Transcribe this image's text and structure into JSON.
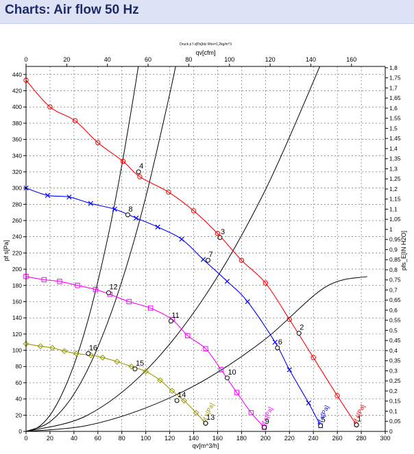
{
  "header": {
    "title": "Charts: Air flow 50 Hz"
  },
  "chart_data": {
    "type": "line",
    "title": "Druck p f s[Pa]/dz Rho=1,2kg/m^3",
    "xlabel": "qv[m^3/h]",
    "xlabel_top": "qv[cfm]",
    "ylabel": "pf s[Pa]",
    "ylabel_right": "pfs_E[IN H2O]",
    "xlim": [
      0,
      300
    ],
    "ylim": [
      0,
      450
    ],
    "x_ticks": [
      0,
      20,
      40,
      60,
      80,
      100,
      120,
      140,
      160,
      180,
      200,
      220,
      240,
      260,
      280,
      300
    ],
    "y_ticks": [
      0,
      20,
      40,
      60,
      80,
      100,
      120,
      140,
      160,
      180,
      200,
      220,
      240,
      260,
      280,
      300,
      320,
      340,
      360,
      380,
      400,
      420,
      440
    ],
    "top_ticks": [
      0,
      20,
      40,
      60,
      80,
      100,
      120,
      140,
      160
    ],
    "right_ticks": [
      "0",
      "0,05",
      "0,1",
      "0,15",
      "0,2",
      "0,25",
      "0,3",
      "0,35",
      "0,4",
      "0,45",
      "0,5",
      "0,55",
      "0,6",
      "0,65",
      "0,7",
      "0,75",
      "0,8",
      "0,85",
      "0,9",
      "0,95",
      "1",
      "1,05",
      "1,1",
      "1,15",
      "1,2",
      "1,25",
      "1,3",
      "1,35",
      "1,4",
      "1,45",
      "1,5",
      "1,55",
      "1,6",
      "1,65",
      "1,7",
      "1,75",
      "1,8"
    ],
    "grid": true,
    "series": [
      {
        "name": "pf s[Pa]",
        "color": "#ff0000",
        "marker": "circle",
        "x": [
          0,
          20,
          41,
          60,
          81,
          95,
          119,
          140,
          160,
          180,
          200,
          220,
          240,
          260,
          276
        ],
        "y": [
          433,
          400,
          383,
          356,
          333,
          314,
          295,
          272,
          244,
          211,
          183,
          138,
          91,
          44,
          8
        ]
      },
      {
        "name": "pf s[Pa]",
        "color": "#0000ff",
        "marker": "x",
        "x": [
          0,
          18,
          36,
          54,
          74,
          92,
          110,
          130,
          148,
          168,
          185,
          208,
          220,
          236,
          246
        ],
        "y": [
          300,
          291,
          289,
          281,
          274,
          263,
          252,
          237,
          212,
          185,
          160,
          110,
          76,
          35,
          7
        ]
      },
      {
        "name": "pf s[Pa]",
        "color": "#ff00ff",
        "marker": "square",
        "x": [
          0,
          15,
          28,
          43,
          58,
          70,
          86,
          104,
          122,
          135,
          150,
          163,
          176,
          188,
          199
        ],
        "y": [
          191,
          187,
          185,
          180,
          175,
          169,
          160,
          152,
          138,
          118,
          102,
          76,
          48,
          23,
          5
        ]
      },
      {
        "name": "pf s[Pa]",
        "color": "#999900",
        "marker": "diamond",
        "x": [
          0,
          12,
          22,
          32,
          42,
          54,
          64,
          76,
          88,
          100,
          112,
          122,
          132,
          142,
          150
        ],
        "y": [
          108,
          105,
          103,
          99,
          96,
          94,
          91,
          86,
          80,
          74,
          63,
          50,
          38,
          23,
          10
        ]
      }
    ],
    "system_curves": [
      {
        "points": [
          [
            0,
            0
          ],
          [
            10,
            5
          ],
          [
            20,
            20
          ],
          [
            30,
            46
          ],
          [
            40,
            82
          ],
          [
            50,
            128
          ],
          [
            60,
            185
          ],
          [
            70,
            251
          ],
          [
            80,
            328
          ],
          [
            90,
            415
          ],
          [
            95,
            462
          ]
        ]
      },
      {
        "points": [
          [
            0,
            0
          ],
          [
            20,
            12
          ],
          [
            40,
            46
          ],
          [
            60,
            104
          ],
          [
            80,
            185
          ],
          [
            100,
            289
          ],
          [
            120,
            416
          ],
          [
            128,
            473
          ]
        ]
      },
      {
        "points": [
          [
            0,
            0
          ],
          [
            50,
            19
          ],
          [
            100,
            75
          ],
          [
            150,
            168
          ],
          [
            200,
            298
          ],
          [
            250,
            466
          ]
        ]
      },
      {
        "points": [
          [
            0,
            0
          ],
          [
            50,
            7
          ],
          [
            100,
            29
          ],
          [
            150,
            64
          ],
          [
            200,
            114
          ],
          [
            250,
            178
          ],
          [
            285,
            191
          ]
        ]
      }
    ],
    "operating_points": [
      {
        "label": "1",
        "x": 276,
        "y": 8
      },
      {
        "label": "2",
        "x": 228,
        "y": 121
      },
      {
        "label": "3",
        "x": 162,
        "y": 239
      },
      {
        "label": "4",
        "x": 94,
        "y": 320
      },
      {
        "label": "5",
        "x": 246,
        "y": 7
      },
      {
        "label": "6",
        "x": 210,
        "y": 103
      },
      {
        "label": "7",
        "x": 152,
        "y": 211
      },
      {
        "label": "8",
        "x": 85,
        "y": 267
      },
      {
        "label": "9",
        "x": 199,
        "y": 5
      },
      {
        "label": "10",
        "x": 168,
        "y": 66
      },
      {
        "label": "11",
        "x": 121,
        "y": 136
      },
      {
        "label": "12",
        "x": 69,
        "y": 171
      },
      {
        "label": "13",
        "x": 150,
        "y": 10
      },
      {
        "label": "14",
        "x": 126,
        "y": 38
      },
      {
        "label": "15",
        "x": 91,
        "y": 77
      },
      {
        "label": "16",
        "x": 52,
        "y": 96
      }
    ]
  }
}
